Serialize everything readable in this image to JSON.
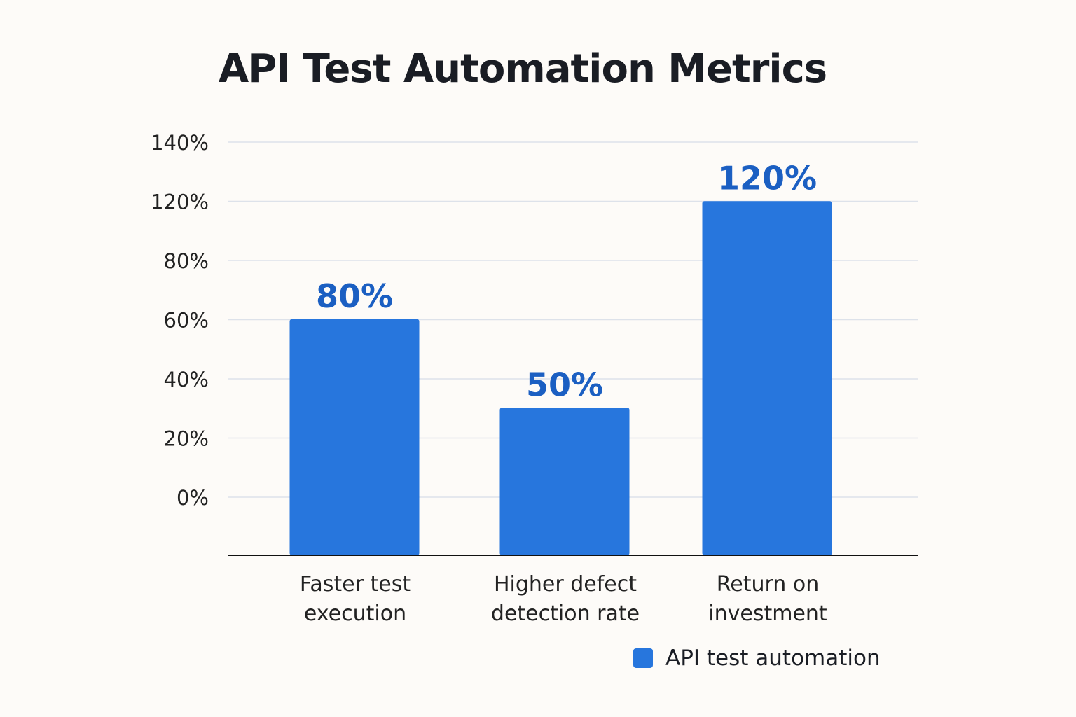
{
  "chart_data": {
    "type": "bar",
    "title": "API Test Automation Metrics",
    "categories": [
      [
        "Faster test",
        "execution"
      ],
      [
        "Higher defect",
        "detection rate"
      ],
      [
        "Return on",
        "investment"
      ]
    ],
    "series": [
      {
        "name": "API test automation",
        "values": [
          80,
          50,
          120
        ],
        "labels": [
          "80%",
          "50%",
          "120%"
        ]
      }
    ],
    "y_tick_labels": [
      "140%",
      "120%",
      "80%",
      "60%",
      "40%",
      "20%",
      "0%"
    ],
    "ylim": [
      0,
      140
    ],
    "grid": true,
    "legend": "bottom-right",
    "colors": {
      "bar": "#2776dd",
      "data_label": "#1b5fc2",
      "grid": "#dde2ea",
      "axis": "#111111"
    }
  }
}
